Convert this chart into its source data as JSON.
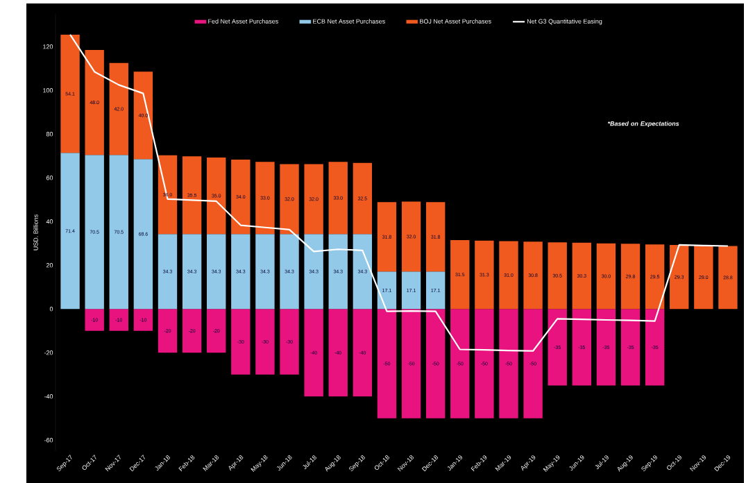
{
  "chart_data": {
    "type": "bar",
    "stacked": true,
    "ylabel": "USD. Billions",
    "categories": [
      "Sep-17",
      "Oct-17",
      "Nov-17",
      "Dec-17",
      "Jan-18",
      "Feb-18",
      "Mar-18",
      "Apr-18",
      "May-18",
      "Jun-18",
      "Jul-18",
      "Aug-18",
      "Sep-18",
      "Oct-18",
      "Nov-18",
      "Dec-18",
      "Jan-19",
      "Feb-19",
      "Mar-19",
      "Apr-19",
      "May-19",
      "Jun-19",
      "Jul-19",
      "Aug-19",
      "Sep-19",
      "Oct-19",
      "Nov-19",
      "Dec-19"
    ],
    "series": [
      {
        "name": "Fed Net Asset Purchases",
        "color": "#e8137f",
        "values": [
          null,
          -10,
          -10,
          -10,
          -20,
          -20,
          -20,
          -30,
          -30,
          -30,
          -40,
          -40,
          -40,
          -50,
          -50,
          -50,
          -50,
          -50,
          -50,
          -50,
          -35,
          -35,
          -35,
          -35,
          -35,
          null,
          null,
          null
        ],
        "value_labels": [
          null,
          "-10",
          "-10",
          "-10",
          "-20",
          "-20",
          "-20",
          "-30",
          "-30",
          "-30",
          "-40",
          "-40",
          "-40",
          "-50",
          "-50",
          "-50",
          "-50",
          "-50",
          "-50",
          "-50",
          "-35",
          "-35",
          "-35",
          "-35",
          "-35",
          null,
          null,
          null
        ]
      },
      {
        "name": "ECB Net Asset Purchases",
        "color": "#93c9e8",
        "values": [
          71.4,
          70.5,
          70.5,
          68.6,
          34.3,
          34.3,
          34.3,
          34.3,
          34.3,
          34.3,
          34.3,
          34.3,
          34.3,
          17.1,
          17.1,
          17.1,
          null,
          null,
          null,
          null,
          null,
          null,
          null,
          null,
          null,
          null,
          null,
          null
        ],
        "value_labels": [
          "71.4",
          "70.5",
          "70.5",
          "68.6",
          "34.3",
          "34.3",
          "34.3",
          "34.3",
          "34.3",
          "34.3",
          "34.3",
          "34.3",
          "34.3",
          "17.1",
          "17.1",
          "17.1",
          null,
          null,
          null,
          null,
          null,
          null,
          null,
          null,
          null,
          null,
          null,
          null
        ]
      },
      {
        "name": "BOJ Net Asset Purchases",
        "color": "#f05a1e",
        "values": [
          54.1,
          48.0,
          42.0,
          40.0,
          36.0,
          35.5,
          35.0,
          34.0,
          33.0,
          32.0,
          32.0,
          33.0,
          32.5,
          31.8,
          32.0,
          31.8,
          31.5,
          31.3,
          31.0,
          30.8,
          30.5,
          30.3,
          30.0,
          29.8,
          29.5,
          29.3,
          29.0,
          28.8
        ],
        "value_labels": [
          "54.1",
          "48.0",
          "42.0",
          "40.0",
          "36.0",
          "35.5",
          "35.0",
          "34.0",
          "33.0",
          "32.0",
          "32.0",
          "33.0",
          "32.5",
          "31.8",
          "32.0",
          "31.8",
          "31.5",
          "31.3",
          "31.0",
          "30.8",
          "30.5",
          "30.3",
          "30.0",
          "29.8",
          "29.5",
          "29.3",
          "29.0",
          "28.8"
        ]
      },
      {
        "name": "Net G3 Quantitative Easing",
        "type": "line",
        "color": "#ffffff",
        "values": [
          125.5,
          108.5,
          102.5,
          98.6,
          50.3,
          49.8,
          49.3,
          38.3,
          37.3,
          36.3,
          26.3,
          27.3,
          26.8,
          -1.1,
          -0.9,
          -1.1,
          -18.5,
          -18.7,
          -19.0,
          -19.2,
          -4.5,
          -4.7,
          -5.0,
          -5.2,
          -5.5,
          29.3,
          29.0,
          28.8
        ]
      }
    ],
    "ylim": [
      -65,
      135
    ],
    "yticks": [
      -60,
      -40,
      -20,
      0,
      20,
      40,
      60,
      80,
      100,
      120
    ],
    "legend": "top",
    "marker": "none",
    "line_style": "solid",
    "grid": false,
    "annotations": [
      "*Based on Expectations"
    ]
  }
}
